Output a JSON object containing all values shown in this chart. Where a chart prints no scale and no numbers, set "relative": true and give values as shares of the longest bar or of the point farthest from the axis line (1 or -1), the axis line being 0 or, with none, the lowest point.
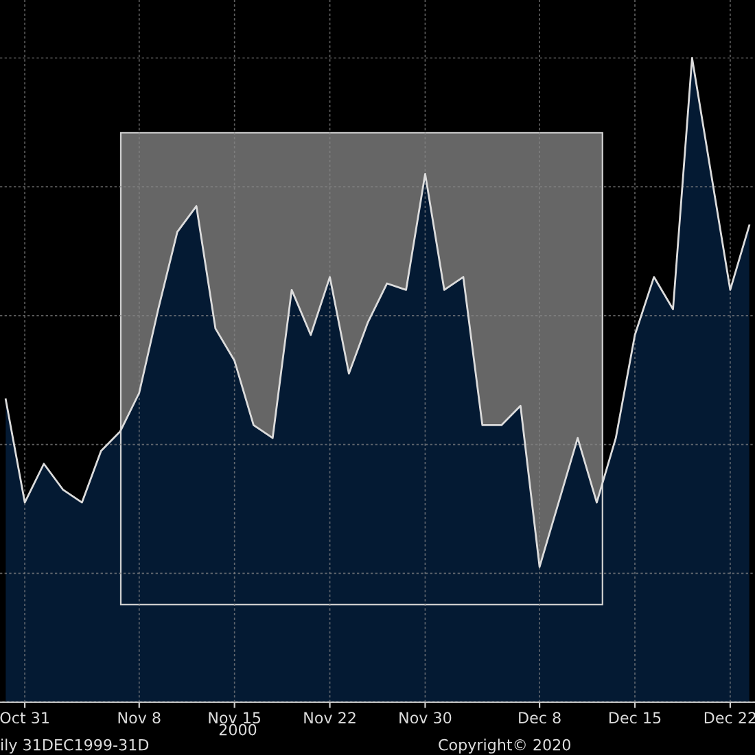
{
  "chart_data": {
    "type": "area",
    "relative": true,
    "grid": true,
    "tick_labels": "x",
    "categories": [
      null,
      "Oct 31",
      null,
      null,
      null,
      null,
      null,
      "Nov 8",
      null,
      null,
      null,
      null,
      "Nov 15",
      null,
      null,
      null,
      null,
      "Nov 22",
      null,
      null,
      null,
      null,
      "Nov 30",
      null,
      null,
      null,
      null,
      null,
      "Dec 8",
      null,
      null,
      null,
      null,
      "Dec 15",
      null,
      null,
      null,
      null,
      "Dec 22",
      null
    ],
    "series": [
      {
        "color": "#041a33",
        "values": [
          0.47,
          0.31,
          0.37,
          0.33,
          0.31,
          0.39,
          0.42,
          0.48,
          0.61,
          0.73,
          0.77,
          0.58,
          0.53,
          0.43,
          0.41,
          0.64,
          0.57,
          0.66,
          0.51,
          0.59,
          0.65,
          0.64,
          0.82,
          0.64,
          0.66,
          0.43,
          0.43,
          0.46,
          0.21,
          0.31,
          0.41,
          0.31,
          0.41,
          0.57,
          0.66,
          0.61,
          1.0,
          0.82,
          0.64,
          0.74
        ]
      }
    ],
    "annotations": [
      "2000",
      "ily 31DEC1999-31D",
      "Copyright© 2020"
    ]
  }
}
